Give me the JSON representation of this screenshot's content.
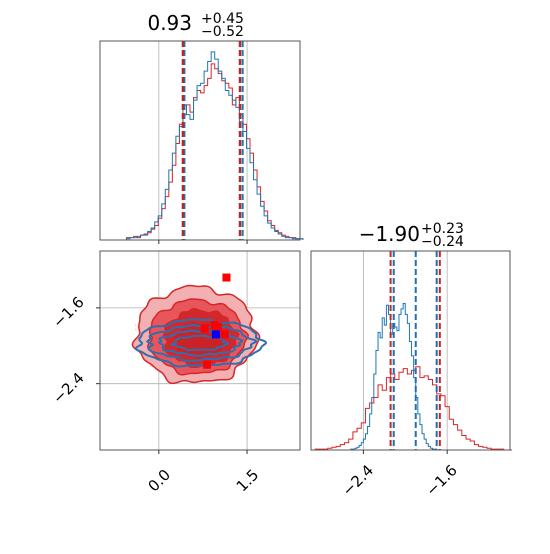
{
  "chart_data": [
    {
      "panel": "top-left-histogram",
      "type": "histogram",
      "title": {
        "base": "0.93",
        "sup": "+0.45",
        "sub": "−0.52"
      },
      "xlim": [
        -1.0,
        2.4
      ],
      "median": 0.93,
      "quantiles_red": [
        0.41,
        1.38
      ],
      "quantiles_blue": [
        0.41,
        1.4
      ],
      "grid_x": [
        0.0,
        1.5
      ],
      "x_ticks": [
        0.0,
        1.5
      ],
      "series": [
        {
          "color": "#d62728",
          "bin_start": -0.55,
          "bin_width": 0.06,
          "values": [
            2,
            2,
            3,
            2,
            4,
            5,
            6,
            9,
            12,
            18,
            26,
            36,
            48,
            62,
            80,
            96,
            104,
            112,
            106,
            118,
            124,
            122,
            128,
            134,
            146,
            142,
            138,
            132,
            130,
            126,
            112,
            118,
            104,
            96,
            84,
            72,
            58,
            44,
            32,
            24,
            16,
            12,
            8,
            6,
            4,
            3,
            2,
            2,
            1,
            1
          ]
        },
        {
          "color": "#1f77b4",
          "bin_start": -0.55,
          "bin_width": 0.06,
          "values": [
            1,
            2,
            2,
            3,
            4,
            4,
            7,
            10,
            15,
            20,
            30,
            42,
            58,
            72,
            86,
            94,
            112,
            104,
            100,
            116,
            128,
            130,
            140,
            148,
            156,
            150,
            140,
            134,
            124,
            120,
            116,
            110,
            98,
            90,
            76,
            64,
            50,
            38,
            28,
            20,
            14,
            10,
            7,
            5,
            3,
            2,
            2,
            1,
            1,
            1
          ]
        }
      ]
    },
    {
      "panel": "bottom-left-2d",
      "type": "scatter",
      "xlim": [
        -1.0,
        2.4
      ],
      "ylim": [
        -3.1,
        -1.0
      ],
      "x_ticks": [
        0.0,
        1.5
      ],
      "y_ticks": [
        -1.6,
        -2.4
      ],
      "x_ticklabels": [
        "0.0",
        "1.5"
      ],
      "y_ticklabels": [
        "−1.6",
        "−2.4"
      ],
      "grid": true,
      "red_points": [
        [
          1.15,
          -1.28
        ],
        [
          0.82,
          -2.2
        ],
        [
          0.95,
          -1.78
        ],
        [
          1.0,
          -1.8
        ],
        [
          0.78,
          -1.82
        ],
        [
          1.12,
          -1.88
        ]
      ],
      "blue_points": [
        [
          0.97,
          -1.88
        ]
      ],
      "contour_colors": {
        "fill_light": "#f2b0b2",
        "fill_mid": "#e8565b",
        "fill_dark": "#d0282d",
        "line_red": "#d62728",
        "line_blue": "#2e6fb0"
      }
    },
    {
      "panel": "bottom-right-histogram",
      "type": "histogram",
      "title": {
        "base": "−1.90",
        "sup": "+0.23",
        "sub": "−0.24"
      },
      "xlim": [
        -2.9,
        -1.0
      ],
      "x_ticks": [
        -2.4,
        -1.6
      ],
      "x_ticklabels": [
        "−2.4",
        "−1.6"
      ],
      "grid_x": [
        -2.4,
        -1.6
      ],
      "quantiles_red": [
        -2.14,
        -1.67
      ],
      "quantiles_blue": [
        -2.11,
        -1.9,
        -1.7
      ],
      "series": [
        {
          "color": "#d62728",
          "bin_start": -2.9,
          "bin_width": 0.04,
          "values": [
            0,
            1,
            1,
            1,
            2,
            3,
            4,
            6,
            8,
            12,
            20,
            24,
            30,
            46,
            52,
            58,
            72,
            66,
            80,
            84,
            78,
            86,
            90,
            84,
            88,
            92,
            80,
            82,
            78,
            72,
            62,
            60,
            48,
            34,
            28,
            22,
            16,
            12,
            10,
            6,
            4,
            3,
            2,
            1,
            1,
            1,
            0,
            0
          ]
        },
        {
          "color": "#1f77b4",
          "bin_start": -2.9,
          "bin_width": 0.02,
          "values": [
            0,
            0,
            0,
            0,
            0,
            0,
            0,
            0,
            0,
            0,
            0,
            0,
            0,
            0,
            0,
            0,
            0,
            0,
            0,
            1,
            1,
            2,
            3,
            5,
            8,
            12,
            18,
            26,
            40,
            58,
            84,
            110,
            130,
            124,
            146,
            138,
            160,
            150,
            128,
            140,
            136,
            132,
            150,
            156,
            162,
            150,
            140,
            120,
            104,
            80,
            58,
            40,
            28,
            18,
            12,
            7,
            4,
            2,
            1,
            1,
            0,
            0,
            0,
            0,
            0,
            0,
            0,
            0,
            0,
            0,
            0,
            0,
            0,
            0,
            0,
            0,
            0,
            0,
            0,
            0,
            0,
            0,
            0,
            0,
            0,
            0,
            0,
            0,
            0,
            0,
            0,
            0,
            0,
            0,
            0
          ]
        }
      ]
    }
  ]
}
